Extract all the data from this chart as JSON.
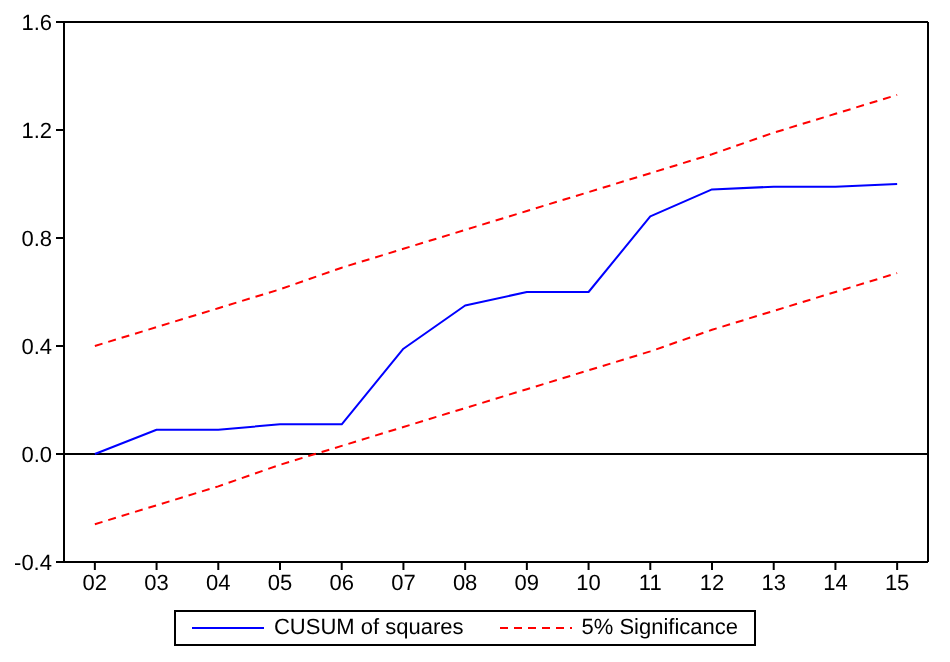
{
  "chart_data": {
    "type": "line",
    "categories": [
      "02",
      "03",
      "04",
      "05",
      "06",
      "07",
      "08",
      "09",
      "10",
      "11",
      "12",
      "13",
      "14",
      "15"
    ],
    "series": [
      {
        "name": "CUSUM of squares",
        "color": "#0000ff",
        "line_style": "solid",
        "values": [
          0.0,
          0.09,
          0.09,
          0.11,
          0.11,
          0.39,
          0.55,
          0.6,
          0.6,
          0.88,
          0.98,
          0.99,
          0.99,
          1.0
        ]
      },
      {
        "name": "5% Significance",
        "color": "#ff0000",
        "line_style": "dashed",
        "values": [
          0.4,
          0.47,
          0.54,
          0.61,
          0.69,
          0.76,
          0.83,
          0.9,
          0.97,
          1.04,
          1.11,
          1.19,
          1.26,
          1.33
        ]
      },
      {
        "color": "#ff0000",
        "line_style": "dashed",
        "values": [
          -0.26,
          -0.19,
          -0.12,
          -0.04,
          0.03,
          0.1,
          0.17,
          0.24,
          0.31,
          0.38,
          0.46,
          0.53,
          0.6,
          0.67
        ]
      }
    ],
    "ylim": [
      -0.4,
      1.6
    ],
    "yticks": [
      -0.4,
      {
        "value": 0,
        "label": "0.0"
      },
      0.4,
      0.8,
      1.2,
      1.6
    ],
    "ref_lines": [
      {
        "axis": "y",
        "value": 0,
        "color": "#000000"
      }
    ],
    "grid": false,
    "legend": "bottom",
    "marker": "none"
  }
}
